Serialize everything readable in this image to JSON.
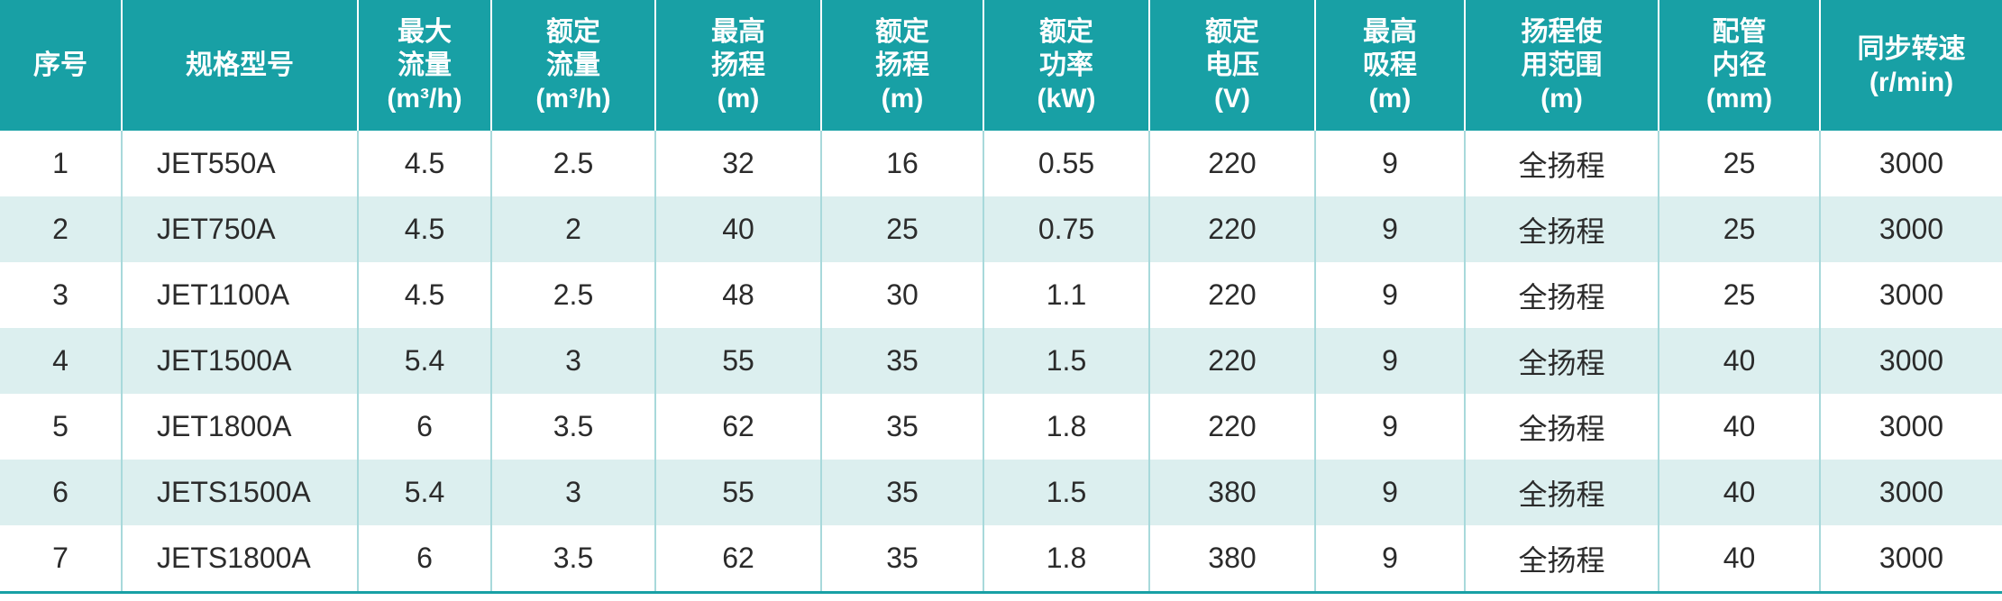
{
  "table": {
    "headers": [
      [
        "序号"
      ],
      [
        "规格型号"
      ],
      [
        "最大",
        "流量",
        "(m³/h)"
      ],
      [
        "额定",
        "流量",
        "(m³/h)"
      ],
      [
        "最高",
        "扬程",
        "(m)"
      ],
      [
        "额定",
        "扬程",
        "(m)"
      ],
      [
        "额定",
        "功率",
        "(kW)"
      ],
      [
        "额定",
        "电压",
        "(V)"
      ],
      [
        "最高",
        "吸程",
        "(m)"
      ],
      [
        "扬程使",
        "用范围",
        "(m)"
      ],
      [
        "配管",
        "内径",
        "(mm)"
      ],
      [
        "同步转速",
        "(r/min)"
      ]
    ],
    "rows": [
      [
        "1",
        "JET550A",
        "4.5",
        "2.5",
        "32",
        "16",
        "0.55",
        "220",
        "9",
        "全扬程",
        "25",
        "3000"
      ],
      [
        "2",
        "JET750A",
        "4.5",
        "2",
        "40",
        "25",
        "0.75",
        "220",
        "9",
        "全扬程",
        "25",
        "3000"
      ],
      [
        "3",
        "JET1100A",
        "4.5",
        "2.5",
        "48",
        "30",
        "1.1",
        "220",
        "9",
        "全扬程",
        "25",
        "3000"
      ],
      [
        "4",
        "JET1500A",
        "5.4",
        "3",
        "55",
        "35",
        "1.5",
        "220",
        "9",
        "全扬程",
        "40",
        "3000"
      ],
      [
        "5",
        "JET1800A",
        "6",
        "3.5",
        "62",
        "35",
        "1.8",
        "220",
        "9",
        "全扬程",
        "40",
        "3000"
      ],
      [
        "6",
        "JETS1500A",
        "5.4",
        "3",
        "55",
        "35",
        "1.5",
        "380",
        "9",
        "全扬程",
        "40",
        "3000"
      ],
      [
        "7",
        "JETS1800A",
        "6",
        "3.5",
        "62",
        "35",
        "1.8",
        "380",
        "9",
        "全扬程",
        "40",
        "3000"
      ]
    ]
  }
}
